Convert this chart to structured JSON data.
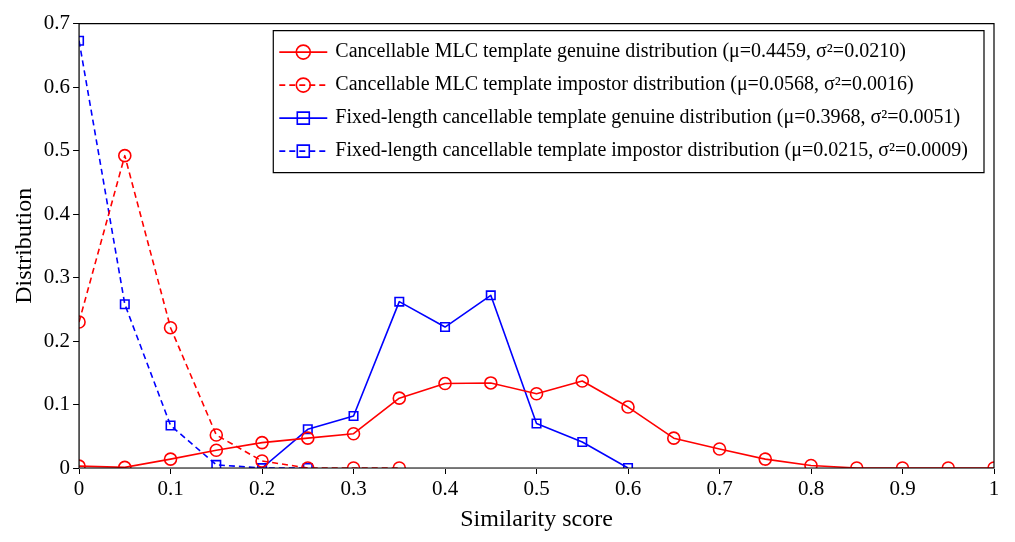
{
  "chart_data": {
    "type": "line",
    "xlabel": "Similarity score",
    "ylabel": "Distribution",
    "xlim": [
      0,
      1
    ],
    "xticks": [
      0,
      0.1,
      0.2,
      0.3,
      0.4,
      0.5,
      0.6,
      0.7,
      0.8,
      0.9,
      1
    ],
    "ylim": [
      0,
      0.7
    ],
    "yticks": [
      0,
      0.1,
      0.2,
      0.3,
      0.4,
      0.5,
      0.6,
      0.7
    ],
    "grid": false,
    "legend": "top right",
    "series": [
      {
        "name": "Cancellable MLC template genuine distribution (μ=0.4459, σ²=0.0210)",
        "color": "#ff0000",
        "marker": "circle",
        "line_style": "solid",
        "x": [
          0,
          0.05,
          0.1,
          0.15,
          0.2,
          0.25,
          0.3,
          0.35,
          0.4,
          0.45,
          0.5,
          0.55,
          0.6,
          0.65,
          0.7,
          0.75,
          0.8,
          0.85,
          0.9,
          0.95,
          1
        ],
        "values": [
          0.003,
          0.001,
          0.014,
          0.028,
          0.04,
          0.047,
          0.054,
          0.11,
          0.133,
          0.134,
          0.117,
          0.137,
          0.096,
          0.047,
          0.03,
          0.014,
          0.004,
          0,
          0,
          0,
          0
        ]
      },
      {
        "name": "Cancellable MLC template impostor distribution (μ=0.0568, σ²=0.0016)",
        "color": "#ff0000",
        "marker": "circle",
        "line_style": "dashed",
        "x": [
          0,
          0.05,
          0.1,
          0.15,
          0.2,
          0.25,
          0.3,
          0.35
        ],
        "values": [
          0.23,
          0.492,
          0.221,
          0.052,
          0.011,
          0,
          0,
          0
        ]
      },
      {
        "name": "Fixed-length cancellable template genuine distribution (μ=0.3968, σ²=0.0051)",
        "color": "#0000ff",
        "marker": "square",
        "line_style": "solid",
        "x": [
          0.2,
          0.25,
          0.3,
          0.35,
          0.4,
          0.45,
          0.5,
          0.55,
          0.6
        ],
        "values": [
          0,
          0.061,
          0.082,
          0.262,
          0.222,
          0.272,
          0.07,
          0.041,
          0
        ]
      },
      {
        "name": "Fixed-length cancellable template impostor distribution (μ=0.0215, σ²=0.0009)",
        "color": "#0000ff",
        "marker": "square",
        "line_style": "dashed",
        "x": [
          0,
          0.05,
          0.1,
          0.15,
          0.2,
          0.25
        ],
        "values": [
          0.673,
          0.258,
          0.067,
          0.005,
          0,
          0
        ]
      }
    ]
  }
}
